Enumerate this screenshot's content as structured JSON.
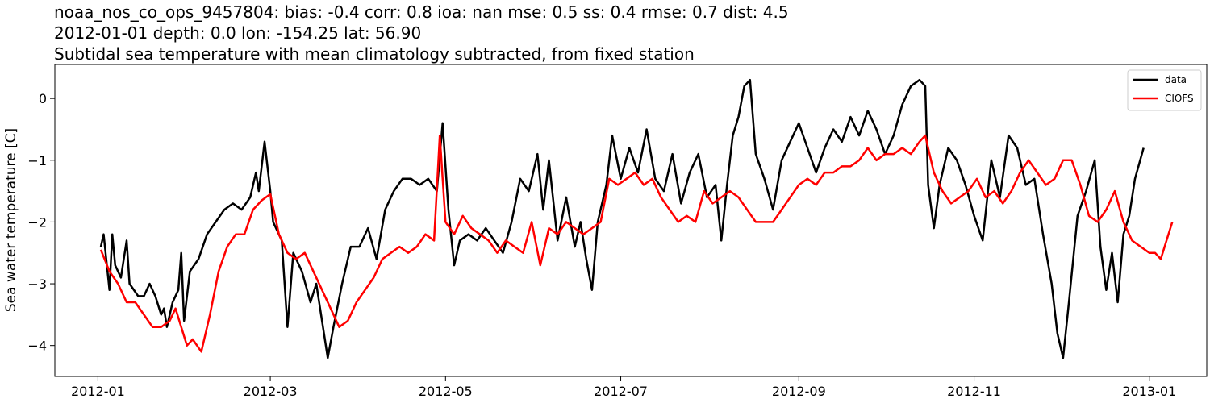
{
  "chart_data": {
    "type": "line",
    "title_lines": [
      "noaa_nos_co_ops_9457804: bias: -0.4  corr: 0.8  ioa: nan  mse: 0.5  ss: 0.4  rmse: 0.7  dist: 4.5",
      "2012-01-01 depth: 0.0 lon: -154.25 lat: 56.90",
      "Subtidal sea temperature with mean climatology subtracted, from fixed station"
    ],
    "xlabel": "",
    "ylabel": "Sea water temperature [C]",
    "xlim": [
      "2011-12-17",
      "2013-01-21"
    ],
    "ylim": [
      -4.5,
      0.55
    ],
    "x_ticks": [
      "2012-01",
      "2012-03",
      "2012-05",
      "2012-07",
      "2012-09",
      "2012-11",
      "2013-01"
    ],
    "y_ticks": [
      0,
      -1,
      -2,
      -3,
      -4
    ],
    "y_tick_labels": [
      "0",
      "−1",
      "−2",
      "−3",
      "−4"
    ],
    "grid": false,
    "legend_position": "top-right",
    "series": [
      {
        "name": "data",
        "color": "#000000",
        "points": [
          [
            "2012-01-02",
            -2.4
          ],
          [
            "2012-01-03",
            -2.2
          ],
          [
            "2012-01-05",
            -3.1
          ],
          [
            "2012-01-06",
            -2.2
          ],
          [
            "2012-01-07",
            -2.7
          ],
          [
            "2012-01-09",
            -2.9
          ],
          [
            "2012-01-11",
            -2.3
          ],
          [
            "2012-01-12",
            -3.0
          ],
          [
            "2012-01-15",
            -3.2
          ],
          [
            "2012-01-17",
            -3.2
          ],
          [
            "2012-01-19",
            -3.0
          ],
          [
            "2012-01-21",
            -3.2
          ],
          [
            "2012-01-23",
            -3.5
          ],
          [
            "2012-01-24",
            -3.4
          ],
          [
            "2012-01-25",
            -3.7
          ],
          [
            "2012-01-27",
            -3.3
          ],
          [
            "2012-01-29",
            -3.1
          ],
          [
            "2012-01-30",
            -2.5
          ],
          [
            "2012-01-31",
            -3.6
          ],
          [
            "2012-02-02",
            -2.8
          ],
          [
            "2012-02-05",
            -2.6
          ],
          [
            "2012-02-08",
            -2.2
          ],
          [
            "2012-02-11",
            -2.0
          ],
          [
            "2012-02-14",
            -1.8
          ],
          [
            "2012-02-17",
            -1.7
          ],
          [
            "2012-02-20",
            -1.8
          ],
          [
            "2012-02-23",
            -1.6
          ],
          [
            "2012-02-25",
            -1.2
          ],
          [
            "2012-02-26",
            -1.5
          ],
          [
            "2012-02-28",
            -0.7
          ],
          [
            "2012-03-01",
            -1.5
          ],
          [
            "2012-03-02",
            -2.0
          ],
          [
            "2012-03-05",
            -2.3
          ],
          [
            "2012-03-07",
            -3.7
          ],
          [
            "2012-03-09",
            -2.5
          ],
          [
            "2012-03-12",
            -2.8
          ],
          [
            "2012-03-15",
            -3.3
          ],
          [
            "2012-03-17",
            -3.0
          ],
          [
            "2012-03-19",
            -3.6
          ],
          [
            "2012-03-21",
            -4.2
          ],
          [
            "2012-03-23",
            -3.7
          ],
          [
            "2012-03-26",
            -3.0
          ],
          [
            "2012-03-29",
            -2.4
          ],
          [
            "2012-04-01",
            -2.4
          ],
          [
            "2012-04-04",
            -2.1
          ],
          [
            "2012-04-07",
            -2.6
          ],
          [
            "2012-04-10",
            -1.8
          ],
          [
            "2012-04-13",
            -1.5
          ],
          [
            "2012-04-16",
            -1.3
          ],
          [
            "2012-04-19",
            -1.3
          ],
          [
            "2012-04-22",
            -1.4
          ],
          [
            "2012-04-25",
            -1.3
          ],
          [
            "2012-04-28",
            -1.5
          ],
          [
            "2012-04-30",
            -0.4
          ],
          [
            "2012-05-02",
            -1.8
          ],
          [
            "2012-05-04",
            -2.7
          ],
          [
            "2012-05-06",
            -2.3
          ],
          [
            "2012-05-09",
            -2.2
          ],
          [
            "2012-05-12",
            -2.3
          ],
          [
            "2012-05-15",
            -2.1
          ],
          [
            "2012-05-18",
            -2.3
          ],
          [
            "2012-05-21",
            -2.5
          ],
          [
            "2012-05-24",
            -2.0
          ],
          [
            "2012-05-27",
            -1.3
          ],
          [
            "2012-05-30",
            -1.5
          ],
          [
            "2012-06-02",
            -0.9
          ],
          [
            "2012-06-04",
            -1.8
          ],
          [
            "2012-06-06",
            -1.0
          ],
          [
            "2012-06-09",
            -2.3
          ],
          [
            "2012-06-12",
            -1.6
          ],
          [
            "2012-06-15",
            -2.4
          ],
          [
            "2012-06-17",
            -2.0
          ],
          [
            "2012-06-19",
            -2.6
          ],
          [
            "2012-06-21",
            -3.1
          ],
          [
            "2012-06-23",
            -2.0
          ],
          [
            "2012-06-26",
            -1.4
          ],
          [
            "2012-06-28",
            -0.6
          ],
          [
            "2012-07-01",
            -1.3
          ],
          [
            "2012-07-04",
            -0.8
          ],
          [
            "2012-07-07",
            -1.2
          ],
          [
            "2012-07-10",
            -0.5
          ],
          [
            "2012-07-13",
            -1.3
          ],
          [
            "2012-07-16",
            -1.5
          ],
          [
            "2012-07-19",
            -0.9
          ],
          [
            "2012-07-22",
            -1.7
          ],
          [
            "2012-07-25",
            -1.2
          ],
          [
            "2012-07-28",
            -0.9
          ],
          [
            "2012-07-31",
            -1.6
          ],
          [
            "2012-08-03",
            -1.4
          ],
          [
            "2012-08-05",
            -2.3
          ],
          [
            "2012-08-07",
            -1.4
          ],
          [
            "2012-08-09",
            -0.6
          ],
          [
            "2012-08-11",
            -0.3
          ],
          [
            "2012-08-13",
            0.2
          ],
          [
            "2012-08-15",
            0.3
          ],
          [
            "2012-08-17",
            -0.9
          ],
          [
            "2012-08-20",
            -1.3
          ],
          [
            "2012-08-23",
            -1.8
          ],
          [
            "2012-08-26",
            -1.0
          ],
          [
            "2012-08-29",
            -0.7
          ],
          [
            "2012-09-01",
            -0.4
          ],
          [
            "2012-09-04",
            -0.8
          ],
          [
            "2012-09-07",
            -1.2
          ],
          [
            "2012-09-10",
            -0.8
          ],
          [
            "2012-09-13",
            -0.5
          ],
          [
            "2012-09-16",
            -0.7
          ],
          [
            "2012-09-19",
            -0.3
          ],
          [
            "2012-09-22",
            -0.6
          ],
          [
            "2012-09-25",
            -0.2
          ],
          [
            "2012-09-28",
            -0.5
          ],
          [
            "2012-10-01",
            -0.9
          ],
          [
            "2012-10-04",
            -0.6
          ],
          [
            "2012-10-07",
            -0.1
          ],
          [
            "2012-10-10",
            0.2
          ],
          [
            "2012-10-13",
            0.3
          ],
          [
            "2012-10-15",
            0.2
          ],
          [
            "2012-10-16",
            -1.4
          ],
          [
            "2012-10-18",
            -2.1
          ],
          [
            "2012-10-20",
            -1.4
          ],
          [
            "2012-10-23",
            -0.8
          ],
          [
            "2012-10-26",
            -1.0
          ],
          [
            "2012-10-29",
            -1.4
          ],
          [
            "2012-11-01",
            -1.9
          ],
          [
            "2012-11-04",
            -2.3
          ],
          [
            "2012-11-07",
            -1.0
          ],
          [
            "2012-11-10",
            -1.6
          ],
          [
            "2012-11-13",
            -0.6
          ],
          [
            "2012-11-16",
            -0.8
          ],
          [
            "2012-11-19",
            -1.4
          ],
          [
            "2012-11-22",
            -1.3
          ],
          [
            "2012-11-25",
            -2.2
          ],
          [
            "2012-11-28",
            -3.0
          ],
          [
            "2012-11-30",
            -3.8
          ],
          [
            "2012-12-02",
            -4.2
          ],
          [
            "2012-12-04",
            -3.3
          ],
          [
            "2012-12-07",
            -1.9
          ],
          [
            "2012-12-10",
            -1.5
          ],
          [
            "2012-12-13",
            -1.0
          ],
          [
            "2012-12-15",
            -2.4
          ],
          [
            "2012-12-17",
            -3.1
          ],
          [
            "2012-12-19",
            -2.5
          ],
          [
            "2012-12-21",
            -3.3
          ],
          [
            "2012-12-23",
            -2.2
          ],
          [
            "2012-12-25",
            -1.9
          ],
          [
            "2012-12-27",
            -1.3
          ],
          [
            "2012-12-30",
            -0.8
          ]
        ]
      },
      {
        "name": "CIOFS",
        "color": "#ff0000",
        "points": [
          [
            "2012-01-02",
            -2.45
          ],
          [
            "2012-01-05",
            -2.8
          ],
          [
            "2012-01-08",
            -3.0
          ],
          [
            "2012-01-11",
            -3.3
          ],
          [
            "2012-01-14",
            -3.3
          ],
          [
            "2012-01-17",
            -3.5
          ],
          [
            "2012-01-20",
            -3.7
          ],
          [
            "2012-01-23",
            -3.7
          ],
          [
            "2012-01-26",
            -3.6
          ],
          [
            "2012-01-28",
            -3.4
          ],
          [
            "2012-01-30",
            -3.7
          ],
          [
            "2012-02-01",
            -4.0
          ],
          [
            "2012-02-03",
            -3.9
          ],
          [
            "2012-02-06",
            -4.1
          ],
          [
            "2012-02-09",
            -3.5
          ],
          [
            "2012-02-12",
            -2.8
          ],
          [
            "2012-02-15",
            -2.4
          ],
          [
            "2012-02-18",
            -2.2
          ],
          [
            "2012-02-21",
            -2.2
          ],
          [
            "2012-02-24",
            -1.8
          ],
          [
            "2012-02-27",
            -1.65
          ],
          [
            "2012-03-01",
            -1.55
          ],
          [
            "2012-03-04",
            -2.2
          ],
          [
            "2012-03-07",
            -2.5
          ],
          [
            "2012-03-10",
            -2.6
          ],
          [
            "2012-03-13",
            -2.5
          ],
          [
            "2012-03-16",
            -2.8
          ],
          [
            "2012-03-19",
            -3.1
          ],
          [
            "2012-03-22",
            -3.4
          ],
          [
            "2012-03-25",
            -3.7
          ],
          [
            "2012-03-28",
            -3.6
          ],
          [
            "2012-03-31",
            -3.3
          ],
          [
            "2012-04-03",
            -3.1
          ],
          [
            "2012-04-06",
            -2.9
          ],
          [
            "2012-04-09",
            -2.6
          ],
          [
            "2012-04-12",
            -2.5
          ],
          [
            "2012-04-15",
            -2.4
          ],
          [
            "2012-04-18",
            -2.5
          ],
          [
            "2012-04-21",
            -2.4
          ],
          [
            "2012-04-24",
            -2.2
          ],
          [
            "2012-04-27",
            -2.3
          ],
          [
            "2012-04-29",
            -0.6
          ],
          [
            "2012-05-01",
            -2.0
          ],
          [
            "2012-05-04",
            -2.2
          ],
          [
            "2012-05-07",
            -1.9
          ],
          [
            "2012-05-10",
            -2.1
          ],
          [
            "2012-05-13",
            -2.2
          ],
          [
            "2012-05-16",
            -2.3
          ],
          [
            "2012-05-19",
            -2.5
          ],
          [
            "2012-05-22",
            -2.3
          ],
          [
            "2012-05-25",
            -2.4
          ],
          [
            "2012-05-28",
            -2.5
          ],
          [
            "2012-05-31",
            -2.0
          ],
          [
            "2012-06-03",
            -2.7
          ],
          [
            "2012-06-06",
            -2.1
          ],
          [
            "2012-06-09",
            -2.2
          ],
          [
            "2012-06-12",
            -2.0
          ],
          [
            "2012-06-15",
            -2.1
          ],
          [
            "2012-06-18",
            -2.2
          ],
          [
            "2012-06-21",
            -2.1
          ],
          [
            "2012-06-24",
            -2.0
          ],
          [
            "2012-06-27",
            -1.3
          ],
          [
            "2012-06-30",
            -1.4
          ],
          [
            "2012-07-03",
            -1.3
          ],
          [
            "2012-07-06",
            -1.2
          ],
          [
            "2012-07-09",
            -1.4
          ],
          [
            "2012-07-12",
            -1.3
          ],
          [
            "2012-07-15",
            -1.6
          ],
          [
            "2012-07-18",
            -1.8
          ],
          [
            "2012-07-21",
            -2.0
          ],
          [
            "2012-07-24",
            -1.9
          ],
          [
            "2012-07-27",
            -2.0
          ],
          [
            "2012-07-30",
            -1.5
          ],
          [
            "2012-08-02",
            -1.7
          ],
          [
            "2012-08-05",
            -1.6
          ],
          [
            "2012-08-08",
            -1.5
          ],
          [
            "2012-08-11",
            -1.6
          ],
          [
            "2012-08-14",
            -1.8
          ],
          [
            "2012-08-17",
            -2.0
          ],
          [
            "2012-08-20",
            -2.0
          ],
          [
            "2012-08-23",
            -2.0
          ],
          [
            "2012-08-26",
            -1.8
          ],
          [
            "2012-08-29",
            -1.6
          ],
          [
            "2012-09-01",
            -1.4
          ],
          [
            "2012-09-04",
            -1.3
          ],
          [
            "2012-09-07",
            -1.4
          ],
          [
            "2012-09-10",
            -1.2
          ],
          [
            "2012-09-13",
            -1.2
          ],
          [
            "2012-09-16",
            -1.1
          ],
          [
            "2012-09-19",
            -1.1
          ],
          [
            "2012-09-22",
            -1.0
          ],
          [
            "2012-09-25",
            -0.8
          ],
          [
            "2012-09-28",
            -1.0
          ],
          [
            "2012-10-01",
            -0.9
          ],
          [
            "2012-10-04",
            -0.9
          ],
          [
            "2012-10-07",
            -0.8
          ],
          [
            "2012-10-10",
            -0.9
          ],
          [
            "2012-10-13",
            -0.7
          ],
          [
            "2012-10-15",
            -0.6
          ],
          [
            "2012-10-18",
            -1.2
          ],
          [
            "2012-10-21",
            -1.5
          ],
          [
            "2012-10-24",
            -1.7
          ],
          [
            "2012-10-27",
            -1.6
          ],
          [
            "2012-10-30",
            -1.5
          ],
          [
            "2012-11-02",
            -1.3
          ],
          [
            "2012-11-05",
            -1.6
          ],
          [
            "2012-11-08",
            -1.5
          ],
          [
            "2012-11-11",
            -1.7
          ],
          [
            "2012-11-14",
            -1.5
          ],
          [
            "2012-11-17",
            -1.2
          ],
          [
            "2012-11-20",
            -1.0
          ],
          [
            "2012-11-23",
            -1.2
          ],
          [
            "2012-11-26",
            -1.4
          ],
          [
            "2012-11-29",
            -1.3
          ],
          [
            "2012-12-02",
            -1.0
          ],
          [
            "2012-12-05",
            -1.0
          ],
          [
            "2012-12-08",
            -1.4
          ],
          [
            "2012-12-11",
            -1.9
          ],
          [
            "2012-12-14",
            -2.0
          ],
          [
            "2012-12-17",
            -1.8
          ],
          [
            "2012-12-20",
            -1.5
          ],
          [
            "2012-12-23",
            -2.0
          ],
          [
            "2012-12-26",
            -2.3
          ],
          [
            "2012-12-29",
            -2.4
          ],
          [
            "2013-01-01",
            -2.5
          ],
          [
            "2013-01-03",
            -2.5
          ],
          [
            "2013-01-05",
            -2.6
          ],
          [
            "2013-01-07",
            -2.3
          ],
          [
            "2013-01-09",
            -2.0
          ]
        ]
      }
    ]
  }
}
